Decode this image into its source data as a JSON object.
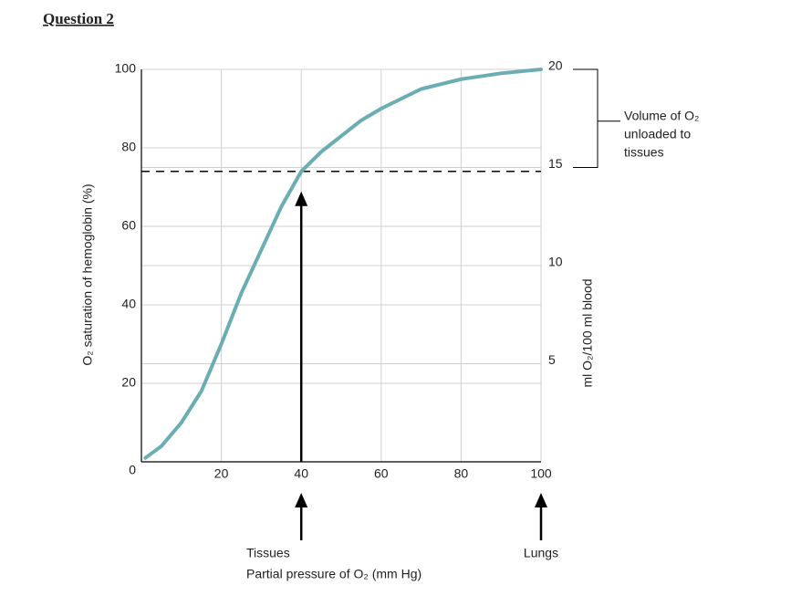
{
  "header": "Question 2",
  "chart_data": {
    "type": "line",
    "x": [
      1,
      5,
      10,
      15,
      20,
      25,
      30,
      35,
      40,
      45,
      50,
      55,
      60,
      70,
      80,
      90,
      100
    ],
    "series": [
      {
        "name": "O₂ saturation",
        "color": "#6aaeb3",
        "values": [
          1,
          4,
          10,
          18,
          30,
          43,
          54,
          65,
          74,
          79,
          83,
          87,
          90,
          95,
          97.5,
          99,
          100
        ]
      }
    ],
    "xlim": [
      0,
      100
    ],
    "xticks": [
      20,
      40,
      60,
      80,
      100
    ],
    "ylim": [
      0,
      100
    ],
    "yticks": [
      0,
      20,
      40,
      60,
      80,
      100
    ],
    "y2lim": [
      0,
      20
    ],
    "y2ticks": [
      5,
      10,
      15,
      20
    ],
    "ylabel": "O₂ saturation of hemoglobin (%)",
    "y2label": "ml O₂/100 ml blood",
    "xlabel": "Partial pressure of O₂ (mm Hg)",
    "grid": true,
    "reference_line": 74,
    "markers": [
      {
        "x": 40,
        "label": "Tissues"
      },
      {
        "x": 100,
        "label": "Lungs"
      }
    ],
    "bracket": {
      "from": 15,
      "to": 20,
      "lines": [
        "Volume of O₂",
        "unloaded to",
        "tissues"
      ]
    }
  }
}
